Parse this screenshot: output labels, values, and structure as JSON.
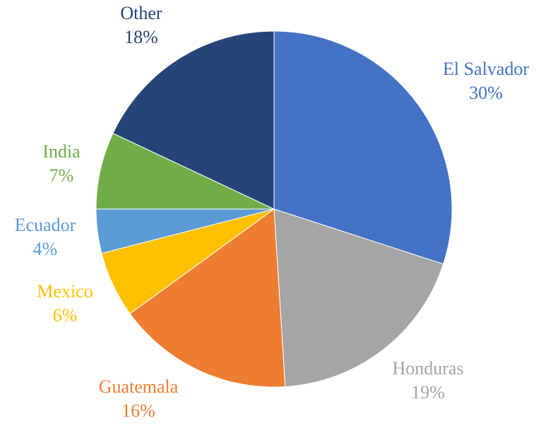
{
  "chart_data": {
    "type": "pie",
    "categories": [
      "El Salvador",
      "Honduras",
      "Guatemala",
      "Mexico",
      "Ecuador",
      "India",
      "Other"
    ],
    "values": [
      30,
      19,
      16,
      6,
      4,
      7,
      18
    ],
    "value_labels": [
      "30%",
      "19%",
      "16%",
      "6%",
      "4%",
      "7%",
      "18%"
    ],
    "colors": [
      "#4472c4",
      "#a5a5a5",
      "#ed7d31",
      "#ffc000",
      "#5b9bd5",
      "#70ad47",
      "#264478"
    ]
  }
}
